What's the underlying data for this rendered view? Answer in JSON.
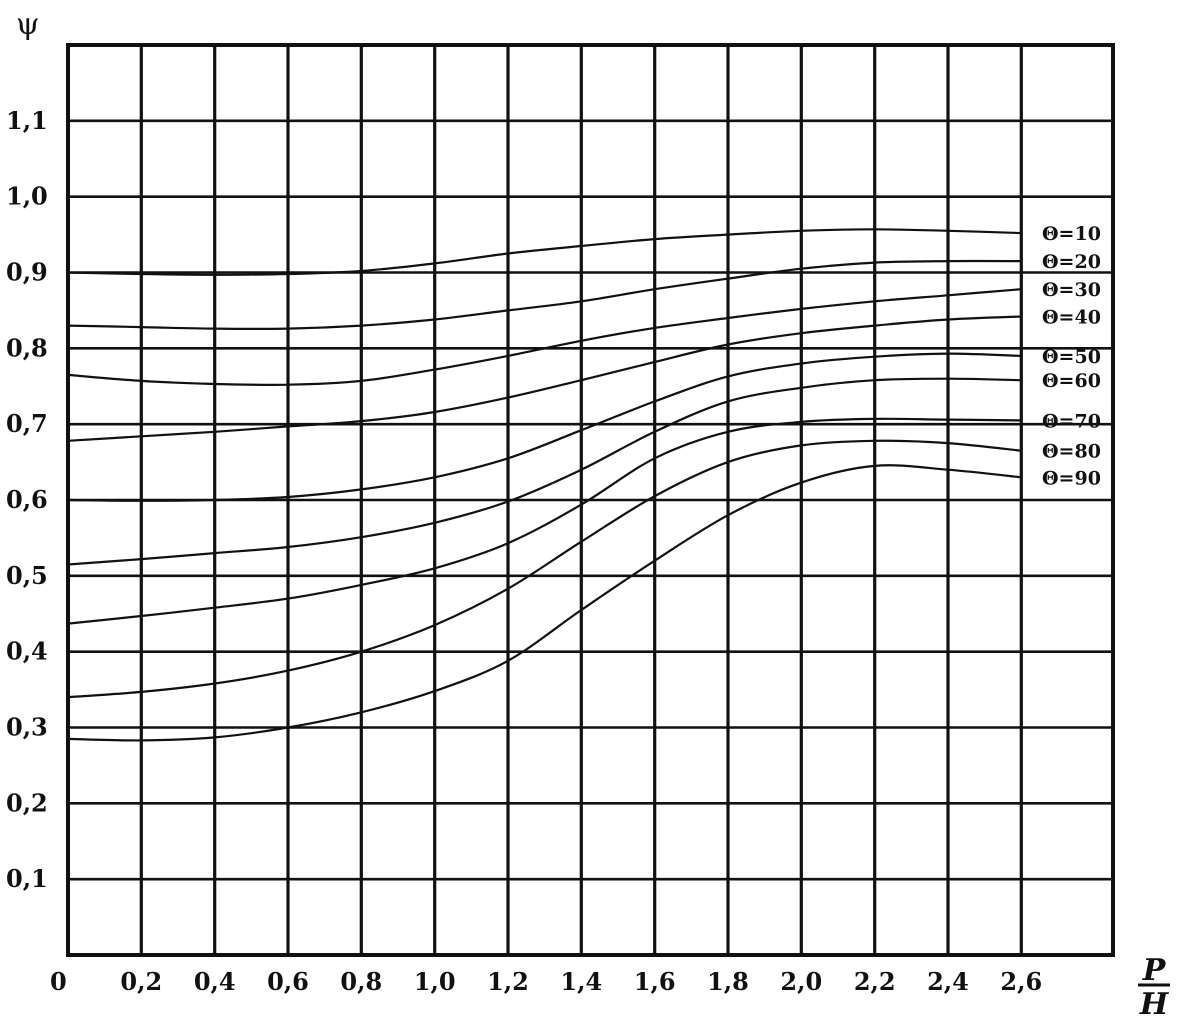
{
  "chart_data": {
    "type": "line",
    "xlabel": {
      "numerator": "P",
      "denominator": "H"
    },
    "ylabel": "ψ",
    "origin_label": "0",
    "xlim": [
      0,
      2.85
    ],
    "ylim": [
      0,
      1.2
    ],
    "x_ticks": [
      {
        "v": 0.2,
        "label": "0,2"
      },
      {
        "v": 0.4,
        "label": "0,4"
      },
      {
        "v": 0.6,
        "label": "0,6"
      },
      {
        "v": 0.8,
        "label": "0,8"
      },
      {
        "v": 1.0,
        "label": "1,0"
      },
      {
        "v": 1.2,
        "label": "1,2"
      },
      {
        "v": 1.4,
        "label": "1,4"
      },
      {
        "v": 1.6,
        "label": "1,6"
      },
      {
        "v": 1.8,
        "label": "1,8"
      },
      {
        "v": 2.0,
        "label": "2,0"
      },
      {
        "v": 2.2,
        "label": "2,2"
      },
      {
        "v": 2.4,
        "label": "2,4"
      },
      {
        "v": 2.6,
        "label": "2,6"
      }
    ],
    "y_ticks": [
      {
        "v": 0.1,
        "label": "0,1"
      },
      {
        "v": 0.2,
        "label": "0,2"
      },
      {
        "v": 0.3,
        "label": "0,3"
      },
      {
        "v": 0.4,
        "label": "0,4"
      },
      {
        "v": 0.5,
        "label": "0,5"
      },
      {
        "v": 0.6,
        "label": "0,6"
      },
      {
        "v": 0.7,
        "label": "0,7"
      },
      {
        "v": 0.8,
        "label": "0,8"
      },
      {
        "v": 0.9,
        "label": "0,9"
      },
      {
        "v": 1.0,
        "label": "1,0"
      },
      {
        "v": 1.1,
        "label": "1,1"
      }
    ],
    "grid": true,
    "x_grid": [
      0.2,
      0.4,
      0.6,
      0.8,
      1.0,
      1.2,
      1.4,
      1.6,
      1.8,
      2.0,
      2.2,
      2.4,
      2.6
    ],
    "series": [
      {
        "name": "Θ=10",
        "x": [
          0,
          0.2,
          0.4,
          0.6,
          0.8,
          1.0,
          1.2,
          1.4,
          1.6,
          1.8,
          2.0,
          2.2,
          2.4,
          2.6
        ],
        "y": [
          0.9,
          0.898,
          0.897,
          0.898,
          0.902,
          0.912,
          0.925,
          0.935,
          0.944,
          0.95,
          0.955,
          0.957,
          0.955,
          0.952
        ]
      },
      {
        "name": "Θ=20",
        "x": [
          0,
          0.2,
          0.4,
          0.6,
          0.8,
          1.0,
          1.2,
          1.4,
          1.6,
          1.8,
          2.0,
          2.2,
          2.4,
          2.6
        ],
        "y": [
          0.83,
          0.828,
          0.826,
          0.826,
          0.83,
          0.838,
          0.85,
          0.862,
          0.878,
          0.892,
          0.905,
          0.913,
          0.915,
          0.915
        ]
      },
      {
        "name": "Θ=30",
        "x": [
          0,
          0.2,
          0.4,
          0.6,
          0.8,
          1.0,
          1.2,
          1.4,
          1.6,
          1.8,
          2.0,
          2.2,
          2.4,
          2.6
        ],
        "y": [
          0.765,
          0.757,
          0.753,
          0.752,
          0.757,
          0.772,
          0.79,
          0.81,
          0.827,
          0.84,
          0.852,
          0.862,
          0.87,
          0.878
        ]
      },
      {
        "name": "Θ=40",
        "x": [
          0,
          0.2,
          0.4,
          0.6,
          0.8,
          1.0,
          1.2,
          1.4,
          1.6,
          1.8,
          2.0,
          2.2,
          2.4,
          2.6
        ],
        "y": [
          0.678,
          0.684,
          0.69,
          0.697,
          0.704,
          0.716,
          0.735,
          0.758,
          0.782,
          0.805,
          0.82,
          0.83,
          0.838,
          0.842
        ]
      },
      {
        "name": "Θ=50",
        "x": [
          0,
          0.2,
          0.4,
          0.6,
          0.8,
          1.0,
          1.2,
          1.4,
          1.6,
          1.8,
          2.0,
          2.2,
          2.4,
          2.6
        ],
        "y": [
          0.6,
          0.599,
          0.6,
          0.604,
          0.614,
          0.63,
          0.655,
          0.692,
          0.73,
          0.763,
          0.78,
          0.789,
          0.793,
          0.79
        ]
      },
      {
        "name": "Θ=60",
        "x": [
          0,
          0.2,
          0.4,
          0.6,
          0.8,
          1.0,
          1.2,
          1.4,
          1.6,
          1.8,
          2.0,
          2.2,
          2.4,
          2.6
        ],
        "y": [
          0.515,
          0.522,
          0.53,
          0.538,
          0.551,
          0.57,
          0.598,
          0.64,
          0.69,
          0.73,
          0.748,
          0.758,
          0.76,
          0.758
        ]
      },
      {
        "name": "Θ=70",
        "x": [
          0,
          0.2,
          0.4,
          0.6,
          0.8,
          1.0,
          1.2,
          1.4,
          1.6,
          1.8,
          2.0,
          2.2,
          2.4,
          2.6
        ],
        "y": [
          0.437,
          0.447,
          0.458,
          0.47,
          0.488,
          0.51,
          0.543,
          0.594,
          0.655,
          0.69,
          0.703,
          0.707,
          0.706,
          0.705
        ]
      },
      {
        "name": "Θ=80",
        "x": [
          0,
          0.2,
          0.4,
          0.6,
          0.8,
          1.0,
          1.2,
          1.4,
          1.6,
          1.8,
          2.0,
          2.2,
          2.4,
          2.6
        ],
        "y": [
          0.34,
          0.347,
          0.358,
          0.375,
          0.4,
          0.435,
          0.483,
          0.545,
          0.605,
          0.65,
          0.672,
          0.678,
          0.675,
          0.665
        ]
      },
      {
        "name": "Θ=90",
        "x": [
          0,
          0.2,
          0.4,
          0.6,
          0.8,
          1.0,
          1.2,
          1.4,
          1.6,
          1.8,
          2.0,
          2.2,
          2.4,
          2.6
        ],
        "y": [
          0.285,
          0.283,
          0.287,
          0.3,
          0.32,
          0.348,
          0.388,
          0.455,
          0.52,
          0.58,
          0.623,
          0.645,
          0.64,
          0.63
        ]
      }
    ],
    "colors": {
      "line": "#111111",
      "grid": "#111111",
      "background": "#ffffff"
    }
  }
}
